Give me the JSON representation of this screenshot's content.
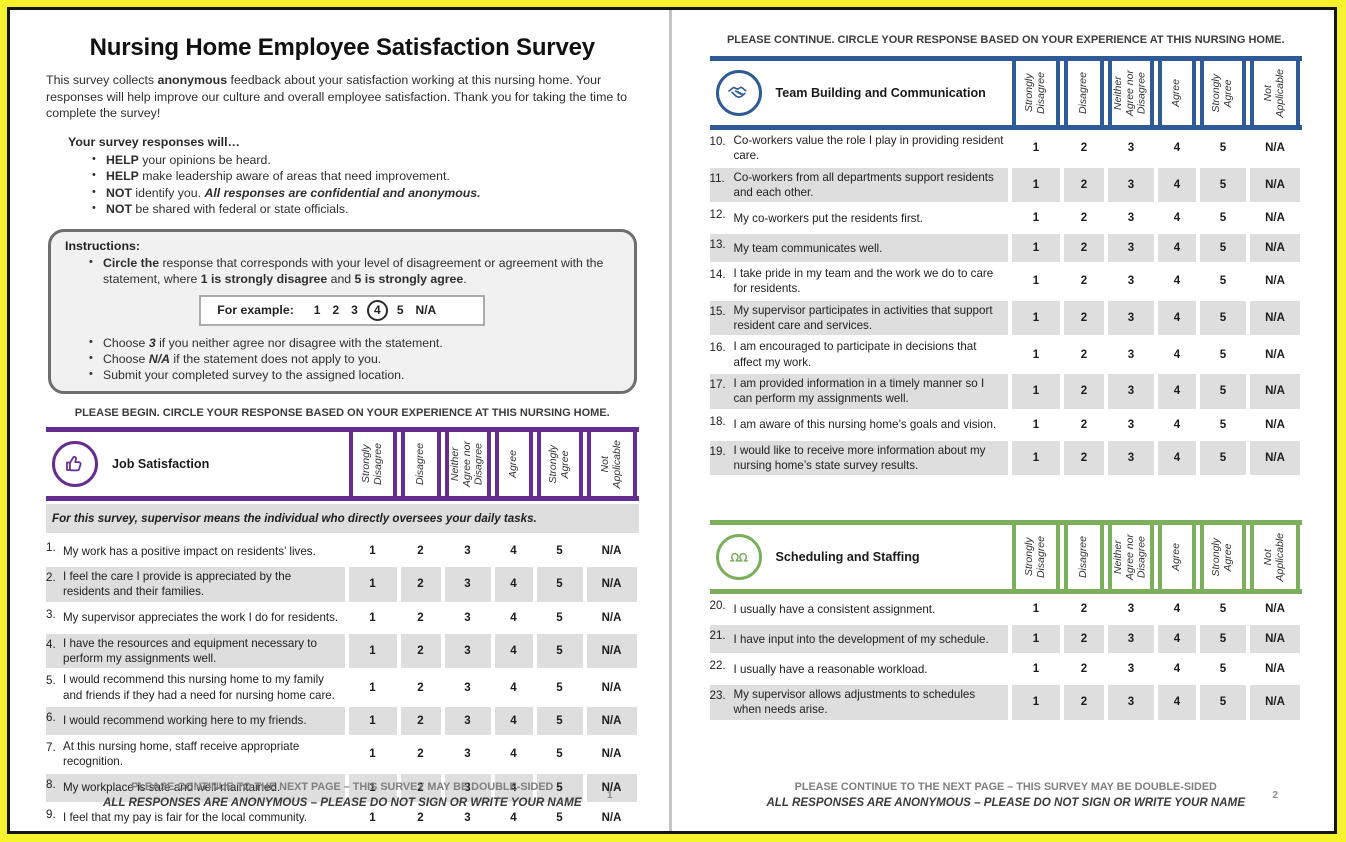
{
  "columns": [
    "Strongly\nDisagree",
    "Disagree",
    "Neither\nAgree nor\nDisagree",
    "Agree",
    "Strongly\nAgree",
    "Not\nApplicable"
  ],
  "options": [
    "1",
    "2",
    "3",
    "4",
    "5",
    "N/A"
  ],
  "colors": {
    "purple": "#662D91",
    "blue": "#2E5B97",
    "green": "#7BAF5C",
    "shade": "#DEDEDE"
  },
  "page1": {
    "title": "Nursing Home Employee Satisfaction Survey",
    "intro": [
      {
        "t": "This survey collects "
      },
      {
        "t": "anonymous",
        "b": 1
      },
      {
        "t": " feedback about your satisfaction working at this nursing home. Your responses will help improve our culture and overall employee satisfaction. Thank you for taking the time to complete the survey!"
      }
    ],
    "responses_heading": "Your survey responses will…",
    "response_bullets": [
      [
        {
          "t": "HELP",
          "b": 1
        },
        {
          "t": " your opinions be heard."
        }
      ],
      [
        {
          "t": "HELP",
          "b": 1
        },
        {
          "t": " make leadership aware of areas that need improvement."
        }
      ],
      [
        {
          "t": "NOT",
          "b": 1
        },
        {
          "t": " identify you. "
        },
        {
          "t": "All responses are confidential and anonymous.",
          "b": 1,
          "i": 1
        }
      ],
      [
        {
          "t": "NOT",
          "b": 1
        },
        {
          "t": " be shared with federal or state officials."
        }
      ]
    ],
    "instructions": {
      "heading": "Instructions:",
      "bullet1": [
        [
          {
            "t": "Circle the",
            "b": 1
          },
          {
            "t": " response that corresponds with your level of disagreement or agreement with the statement, where "
          },
          {
            "t": "1 is strongly disagree",
            "b": 1
          },
          {
            "t": " and "
          },
          {
            "t": "5 is strongly agree",
            "b": 1
          },
          {
            "t": "."
          }
        ]
      ],
      "example_label": "For example:",
      "example_options": [
        "1",
        "2",
        "3",
        "4",
        "5",
        "N/A"
      ],
      "example_circled_index": 3,
      "bullets": [
        [
          {
            "t": "Choose "
          },
          {
            "t": "3",
            "b": 1,
            "i": 1
          },
          {
            "t": " if you neither agree nor disagree with the statement."
          }
        ],
        [
          {
            "t": "Choose "
          },
          {
            "t": "N/A",
            "b": 1,
            "i": 1
          },
          {
            "t": " if the statement does not apply to you."
          }
        ],
        [
          {
            "t": "Submit your completed survey to the assigned location."
          }
        ]
      ]
    },
    "banner": "PLEASE BEGIN. CIRCLE YOUR RESPONSE BASED ON YOUR EXPERIENCE AT THIS NURSING HOME.",
    "page_number": "1"
  },
  "page2": {
    "banner": "PLEASE CONTINUE. CIRCLE YOUR RESPONSE BASED ON YOUR EXPERIENCE AT THIS NURSING HOME.",
    "page_number": "2"
  },
  "footer": {
    "line1": "PLEASE CONTINUE TO THE NEXT PAGE – THIS SURVEY MAY BE DOUBLE-SIDED",
    "line2": "ALL RESPONSES ARE ANONYMOUS – PLEASE DO NOT SIGN OR WRITE YOUR NAME"
  },
  "sections": [
    {
      "label": "Job Satisfaction",
      "icon": "thumbs-up-icon",
      "color": "#662D91",
      "note": "For this survey, supervisor means the individual who directly oversees your daily tasks.",
      "items": [
        {
          "num": "1.",
          "text": "My work has a positive impact on residents’ lives.",
          "shaded": false
        },
        {
          "num": "2.",
          "text": "I feel the care I provide is appreciated by the residents and their families.",
          "shaded": true
        },
        {
          "num": "3.",
          "text": "My supervisor appreciates the work I do for residents.",
          "shaded": false
        },
        {
          "num": "4.",
          "text": "I have the resources and equipment necessary to perform my assignments well.",
          "shaded": true
        },
        {
          "num": "5.",
          "text": "I would recommend this nursing home to my family and friends if they had a need for nursing home care.",
          "shaded": false
        },
        {
          "num": "6.",
          "text": "I would recommend working here to my friends.",
          "shaded": true
        },
        {
          "num": "7.",
          "text": "At this nursing home, staff receive appropriate recognition.",
          "shaded": false
        },
        {
          "num": "8.",
          "text": "My workplace is safe and well-maintained.",
          "shaded": true
        },
        {
          "num": "9.",
          "text": "I feel that my pay is fair for the local community.",
          "shaded": false
        }
      ]
    },
    {
      "label": "Team Building and Communication",
      "icon": "handshake-icon",
      "color": "#2E5B97",
      "items": [
        {
          "num": "10.",
          "text": "Co-workers value the role I play in providing resident care.",
          "shaded": false
        },
        {
          "num": "11.",
          "text": "Co-workers from all departments support residents and each other.",
          "shaded": true
        },
        {
          "num": "12.",
          "text": "My co-workers put the residents first.",
          "shaded": false
        },
        {
          "num": "13.",
          "text": "My team communicates well.",
          "shaded": true
        },
        {
          "num": "14.",
          "text": "I take pride in my team and the work we do to care for residents.",
          "shaded": false
        },
        {
          "num": "15.",
          "text": "My supervisor participates in activities that support resident care and services.",
          "shaded": true
        },
        {
          "num": "16.",
          "text": "I am encouraged to participate in decisions that affect my work.",
          "shaded": false
        },
        {
          "num": "17.",
          "text": "I am provided information in a timely manner so I can perform my assignments well.",
          "shaded": true
        },
        {
          "num": "18.",
          "text": "I am aware of this nursing home’s goals and vision.",
          "shaded": false
        },
        {
          "num": "19.",
          "text": "I would like to receive more information about my nursing home’s state survey results.",
          "shaded": true
        }
      ]
    },
    {
      "label": "Scheduling and Staffing",
      "icon": "people-icon",
      "color": "#7BAF5C",
      "items": [
        {
          "num": "20.",
          "text": "I usually have a consistent assignment.",
          "shaded": false
        },
        {
          "num": "21.",
          "text": "I have input into the development of my schedule.",
          "shaded": true
        },
        {
          "num": "22.",
          "text": "I usually have a reasonable workload.",
          "shaded": false
        },
        {
          "num": "23.",
          "text": "My supervisor allows adjustments to schedules when needs arise.",
          "shaded": true
        }
      ]
    }
  ]
}
